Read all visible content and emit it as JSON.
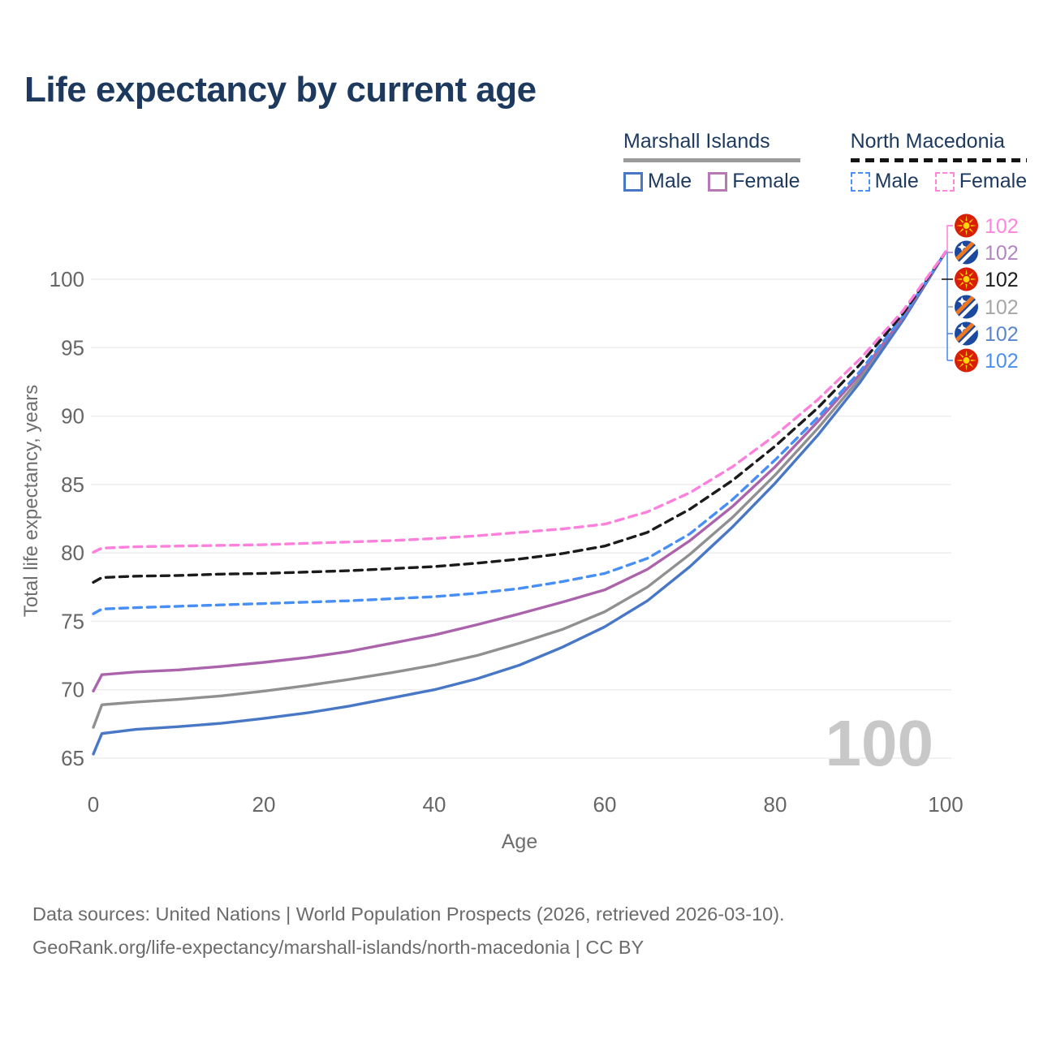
{
  "page": {
    "title": "Life expectancy by current age",
    "watermark_age": "100",
    "footer_line1": "Data sources: United Nations | World Population Prospects (2026, retrieved 2026-03-10).",
    "footer_line2": "GeoRank.org/life-expectancy/marshall-islands/north-macedonia | CC BY"
  },
  "legend": {
    "groups": [
      {
        "title": "Marshall Islands",
        "line_style": "solid",
        "underline_color": "#9b9b9b",
        "items": [
          {
            "label": "Male",
            "color": "#4877c6",
            "dashed": false
          },
          {
            "label": "Female",
            "color": "#b579b5",
            "dashed": false
          }
        ]
      },
      {
        "title": "North Macedonia",
        "line_style": "dashed",
        "underline_color": "#141414",
        "items": [
          {
            "label": "Male",
            "color": "#4a90f7",
            "dashed": true
          },
          {
            "label": "Female",
            "color": "#ff85dd",
            "dashed": true
          }
        ]
      }
    ]
  },
  "chart_data": {
    "type": "line",
    "title": "Life expectancy by current age",
    "xlabel": "Age",
    "ylabel": "Total life expectancy, years",
    "xlim": [
      0,
      100
    ],
    "ylim": [
      65,
      100
    ],
    "xticks": [
      0,
      20,
      40,
      60,
      80,
      100
    ],
    "yticks": [
      65,
      70,
      75,
      80,
      85,
      90,
      95,
      100
    ],
    "grid": "horizontal-only",
    "legend_position": "top-right",
    "x": [
      0,
      1,
      5,
      10,
      15,
      20,
      25,
      30,
      35,
      40,
      45,
      50,
      55,
      60,
      65,
      70,
      75,
      80,
      85,
      90,
      95,
      100
    ],
    "series": [
      {
        "name": "Marshall Islands Total",
        "country": "Marshall Islands",
        "sex": "Total",
        "style": "solid",
        "color": "#909090",
        "values": [
          67.25,
          68.9,
          69.1,
          69.3,
          69.55,
          69.9,
          70.3,
          70.75,
          71.25,
          71.8,
          72.5,
          73.4,
          74.4,
          75.7,
          77.5,
          79.9,
          82.6,
          85.7,
          89.1,
          92.8,
          97.1,
          102
        ]
      },
      {
        "name": "Marshall Islands Male",
        "country": "Marshall Islands",
        "sex": "Male",
        "style": "solid",
        "color": "#4877c6",
        "values": [
          65.3,
          66.8,
          67.1,
          67.3,
          67.55,
          67.9,
          68.3,
          68.8,
          69.4,
          70.0,
          70.8,
          71.8,
          73.1,
          74.6,
          76.5,
          79.0,
          81.9,
          85.1,
          88.6,
          92.5,
          97.0,
          102
        ]
      },
      {
        "name": "Marshall Islands Female",
        "country": "Marshall Islands",
        "sex": "Female",
        "style": "solid",
        "color": "#ab64ab",
        "values": [
          69.9,
          71.1,
          71.3,
          71.45,
          71.7,
          72.0,
          72.35,
          72.8,
          73.4,
          74.0,
          74.75,
          75.55,
          76.4,
          77.3,
          78.8,
          80.9,
          83.4,
          86.3,
          89.6,
          93.1,
          97.2,
          102
        ]
      },
      {
        "name": "North Macedonia Male",
        "country": "North Macedonia",
        "sex": "Male",
        "style": "dashed",
        "color": "#478ff5",
        "values": [
          75.55,
          75.9,
          76.0,
          76.1,
          76.2,
          76.3,
          76.4,
          76.5,
          76.65,
          76.8,
          77.05,
          77.4,
          77.9,
          78.5,
          79.6,
          81.4,
          83.9,
          86.8,
          89.9,
          93.3,
          97.3,
          102
        ]
      },
      {
        "name": "North Macedonia Total",
        "country": "North Macedonia",
        "sex": "Total",
        "style": "dashed",
        "color": "#1b1b1b",
        "values": [
          77.85,
          78.2,
          78.3,
          78.35,
          78.45,
          78.5,
          78.6,
          78.7,
          78.85,
          79.0,
          79.25,
          79.55,
          79.95,
          80.5,
          81.5,
          83.2,
          85.3,
          87.8,
          90.6,
          93.8,
          97.5,
          102
        ]
      },
      {
        "name": "North Macedonia Female",
        "country": "North Macedonia",
        "sex": "Female",
        "style": "dashed",
        "color": "#fd80dd",
        "values": [
          80.05,
          80.35,
          80.45,
          80.5,
          80.55,
          80.6,
          80.7,
          80.8,
          80.9,
          81.05,
          81.25,
          81.5,
          81.75,
          82.1,
          83.0,
          84.4,
          86.3,
          88.6,
          91.2,
          94.2,
          97.7,
          102
        ]
      }
    ],
    "end_labels": [
      {
        "country": "North Macedonia",
        "flag": "nm",
        "value": "102",
        "color": "#ff85dd"
      },
      {
        "country": "Marshall Islands",
        "flag": "mi",
        "value": "102",
        "color": "#b286bd"
      },
      {
        "country": "North Macedonia",
        "flag": "nm",
        "value": "102",
        "color": "#1d1d1d"
      },
      {
        "country": "Marshall Islands",
        "flag": "mi",
        "value": "102",
        "color": "#a6a6a6"
      },
      {
        "country": "Marshall Islands",
        "flag": "mi",
        "value": "102",
        "color": "#5b86ca"
      },
      {
        "country": "North Macedonia",
        "flag": "nm",
        "value": "102",
        "color": "#4a90f0"
      }
    ]
  }
}
